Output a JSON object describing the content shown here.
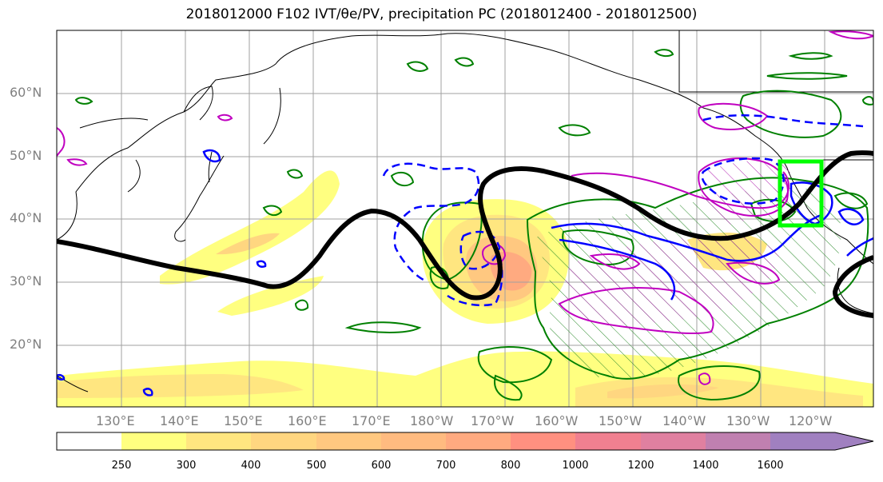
{
  "title": "2018012000 F102 IVT/θe/PV, precipitation PC (2018012400 - 2018012500)",
  "lat_labels": [
    "60°N",
    "50°N",
    "40°N",
    "30°N",
    "20°N"
  ],
  "lon_labels": [
    "130°E",
    "140°E",
    "150°E",
    "160°E",
    "170°E",
    "180°W",
    "170°W",
    "160°W",
    "150°W",
    "140°W",
    "130°W",
    "120°W"
  ],
  "colorbar": {
    "ticks": [
      "250",
      "300",
      "400",
      "500",
      "600",
      "700",
      "800",
      "1000",
      "1200",
      "1400",
      "1600"
    ],
    "colors": [
      "#ffffff",
      "#ffff80",
      "#ffe680",
      "#ffd680",
      "#ffc880",
      "#ffbb80",
      "#ffaa80",
      "#ff9080",
      "#f08090",
      "#e080a0",
      "#c080b0",
      "#a080c0"
    ]
  },
  "colors": {
    "ivt_shading": "#ffe680",
    "theta_e_contour": "#000000",
    "pv_contour": "#0000ff",
    "precip_pc_contour": "#008000",
    "magenta_contour": "#c000c0",
    "target_box": "#00ff00"
  }
}
